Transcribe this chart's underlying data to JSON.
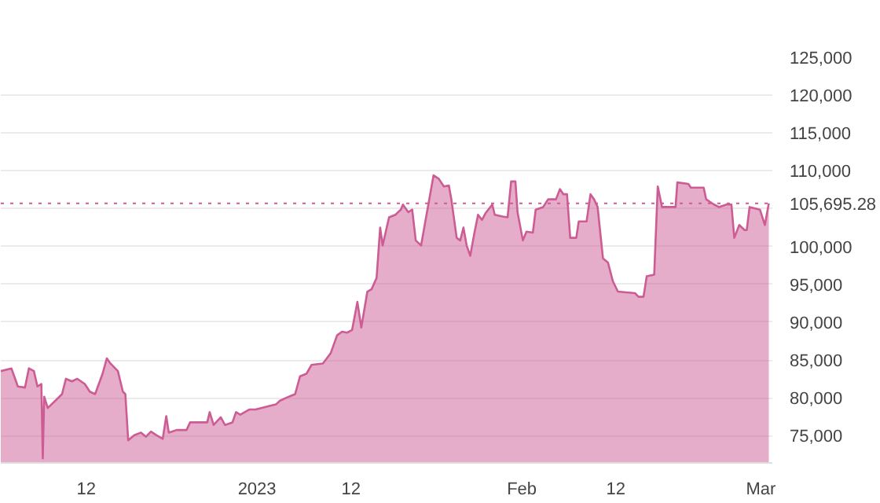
{
  "chart_data": {
    "type": "area",
    "x": [
      "2022-12-02T00:00",
      "2022-12-03T06:00",
      "2022-12-04T00:00",
      "2022-12-04T20:00",
      "2022-12-05T07:00",
      "2022-12-05T21:00",
      "2022-12-06T07:00",
      "2022-12-06T18:00",
      "2022-12-06T22:00",
      "2022-12-07T02:00",
      "2022-12-07T12:00",
      "2022-12-08T06:00",
      "2022-12-09T04:00",
      "2022-12-09T15:00",
      "2022-12-10T08:00",
      "2022-12-10T23:00",
      "2022-12-11T20:00",
      "2022-12-12T10:00",
      "2022-12-13T01:00",
      "2022-12-13T22:00",
      "2022-12-14T10:00",
      "2022-12-14T20:00",
      "2022-12-15T17:00",
      "2022-12-16T07:00",
      "2022-12-16T14:00",
      "2022-12-16T22:00",
      "2022-12-17T15:00",
      "2022-12-18T10:00",
      "2022-12-19T00:00",
      "2022-12-19T14:00",
      "2022-12-20T05:00",
      "2022-12-20T23:00",
      "2022-12-21T09:00",
      "2022-12-21T16:00",
      "2022-12-22T14:00",
      "2022-12-23T18:00",
      "2022-12-24T04:00",
      "2022-12-26T04:00",
      "2022-12-26T11:00",
      "2022-12-26T22:00",
      "2022-12-27T18:00",
      "2022-12-28T06:00",
      "2022-12-29T03:00",
      "2022-12-29T13:00",
      "2022-12-30T01:00",
      "2022-12-31T02:00",
      "2022-12-31T20:00",
      "2023-01-02T00:00",
      "2023-01-03T05:00",
      "2023-01-03T16:00",
      "2023-01-04T10:00",
      "2023-01-05T00:00",
      "2023-01-05T11:00",
      "2023-01-06T01:00",
      "2023-01-06T19:00",
      "2023-01-07T09:00",
      "2023-01-08T17:00",
      "2023-01-09T04:00",
      "2023-01-09T15:00",
      "2023-01-10T09:00",
      "2023-01-10T23:00",
      "2023-01-11T13:00",
      "2023-01-12T03:00",
      "2023-01-12T18:00",
      "2023-01-13T05:00",
      "2023-01-13T22:00",
      "2023-01-14T10:00",
      "2023-01-15T00:00",
      "2023-01-15T10:00",
      "2023-01-15T17:00",
      "2023-01-16T11:00",
      "2023-01-17T05:00",
      "2023-01-17T20:00",
      "2023-01-18T02:00",
      "2023-01-18T17:00",
      "2023-01-19T04:00",
      "2023-01-19T14:00",
      "2023-01-20T05:00",
      "2023-01-20T19:00",
      "2023-01-21T16:00",
      "2023-01-22T07:00",
      "2023-01-22T21:00",
      "2023-01-23T11:00",
      "2023-01-23T18:00",
      "2023-01-24T09:00",
      "2023-01-24T19:00",
      "2023-01-25T04:00",
      "2023-01-25T13:00",
      "2023-01-25T23:00",
      "2023-01-26T11:00",
      "2023-01-26T21:00",
      "2023-01-27T08:00",
      "2023-01-27T18:00",
      "2023-01-28T13:00",
      "2023-01-28T20:00",
      "2023-01-29T18:00",
      "2023-01-30T08:00",
      "2023-01-30T18:00",
      "2023-01-31T06:00",
      "2023-01-31T12:00",
      "2023-02-01T03:00",
      "2023-02-01T13:00",
      "2023-02-02T07:00",
      "2023-02-02T15:00",
      "2023-02-03T12:00",
      "2023-02-04T02:00",
      "2023-02-05T00:00",
      "2023-02-05T11:00",
      "2023-02-05T21:00",
      "2023-02-06T07:00",
      "2023-02-06T16:00",
      "2023-02-07T09:00",
      "2023-02-07T16:00",
      "2023-02-08T14:00",
      "2023-02-09T01:00",
      "2023-02-09T11:00",
      "2023-02-09T21:00",
      "2023-02-10T12:00",
      "2023-02-11T02:00",
      "2023-02-11T16:00",
      "2023-02-12T06:00",
      "2023-02-14T06:00",
      "2023-02-14T16:00",
      "2023-02-15T06:00",
      "2023-02-15T15:00",
      "2023-02-16T12:00",
      "2023-02-16T22:00",
      "2023-02-17T10:00",
      "2023-02-19T00:00",
      "2023-02-19T05:00",
      "2023-02-20T12:00",
      "2023-02-20T19:00",
      "2023-02-22T07:00",
      "2023-02-22T14:00",
      "2023-02-23T12:00",
      "2023-02-24T02:00",
      "2023-02-24T23:00",
      "2023-02-25T13:00",
      "2023-02-25T21:00",
      "2023-02-26T11:00",
      "2023-02-27T02:00",
      "2023-02-27T08:00",
      "2023-02-27T16:00",
      "2023-02-28T21:00",
      "2023-03-01T11:00",
      "2023-03-01T22:00"
    ],
    "series": [
      {
        "color": "#cc5c93",
        "values": [
          83540,
          83880,
          81500,
          81360,
          83900,
          83540,
          81500,
          81840,
          72000,
          80150,
          78660,
          79470,
          80490,
          82520,
          82180,
          82520,
          81840,
          80830,
          80490,
          83190,
          85220,
          84550,
          83540,
          80830,
          80490,
          74390,
          75070,
          75410,
          74860,
          75540,
          75070,
          74590,
          77580,
          75410,
          75750,
          75750,
          76760,
          76760,
          78110,
          76420,
          77440,
          76420,
          76760,
          78110,
          77780,
          78460,
          78460,
          78800,
          79130,
          79610,
          80010,
          80280,
          80490,
          82860,
          83190,
          84350,
          84540,
          85220,
          85900,
          88270,
          88750,
          88620,
          88960,
          92680,
          89300,
          94040,
          94370,
          95870,
          102500,
          100140,
          103860,
          104200,
          104880,
          105550,
          104540,
          104880,
          100810,
          100140,
          103860,
          109410,
          108940,
          107930,
          108070,
          106240,
          101150,
          100810,
          102500,
          100140,
          98780,
          101830,
          104200,
          103520,
          104400,
          105550,
          104200,
          103970,
          103860,
          108600,
          108600,
          104540,
          100810,
          101970,
          101830,
          104880,
          105220,
          106240,
          106240,
          107590,
          106910,
          106910,
          101150,
          101150,
          103320,
          103320,
          106910,
          106240,
          105220,
          98440,
          97900,
          95390,
          94040,
          93840,
          93360,
          93360,
          96080,
          96280,
          107930,
          105220,
          105220,
          108470,
          108270,
          107790,
          107790,
          106240,
          105550,
          105220,
          105550,
          105550,
          101150,
          102850,
          102170,
          102170,
          105220,
          104880,
          102850,
          105695.28
        ]
      }
    ],
    "xlim": [
      "2022-12-02T00:00",
      "2023-03-02T08:00"
    ],
    "xticks": [
      {
        "value": "2022-12-12",
        "label": "12"
      },
      {
        "value": "2023-01-01",
        "label": "2023"
      },
      {
        "value": "2023-01-12",
        "label": "12"
      },
      {
        "value": "2023-02-01",
        "label": "Feb"
      },
      {
        "value": "2023-02-12",
        "label": "12"
      },
      {
        "value": "2023-03-01",
        "label": "Mar"
      }
    ],
    "ylim": [
      71400,
      125000
    ],
    "yticks": [
      {
        "value": 75000,
        "label": "75,000"
      },
      {
        "value": 80000,
        "label": "80,000"
      },
      {
        "value": 85000,
        "label": "85,000"
      },
      {
        "value": 90000,
        "label": "90,000"
      },
      {
        "value": 95000,
        "label": "95,000"
      },
      {
        "value": 100000,
        "label": "100,000"
      },
      {
        "value": 105000,
        "label": null
      },
      {
        "value": 110000,
        "label": "110,000"
      },
      {
        "value": 115000,
        "label": "115,000"
      },
      {
        "value": 120000,
        "label": "120,000"
      },
      {
        "value": 125000,
        "label": "125,000"
      }
    ],
    "ref_lines": [
      {
        "axis": "y",
        "value": 105695.28,
        "label": "105,695.28",
        "color": "#cc5c93",
        "line_style": "dotted"
      }
    ],
    "grid": "y"
  }
}
